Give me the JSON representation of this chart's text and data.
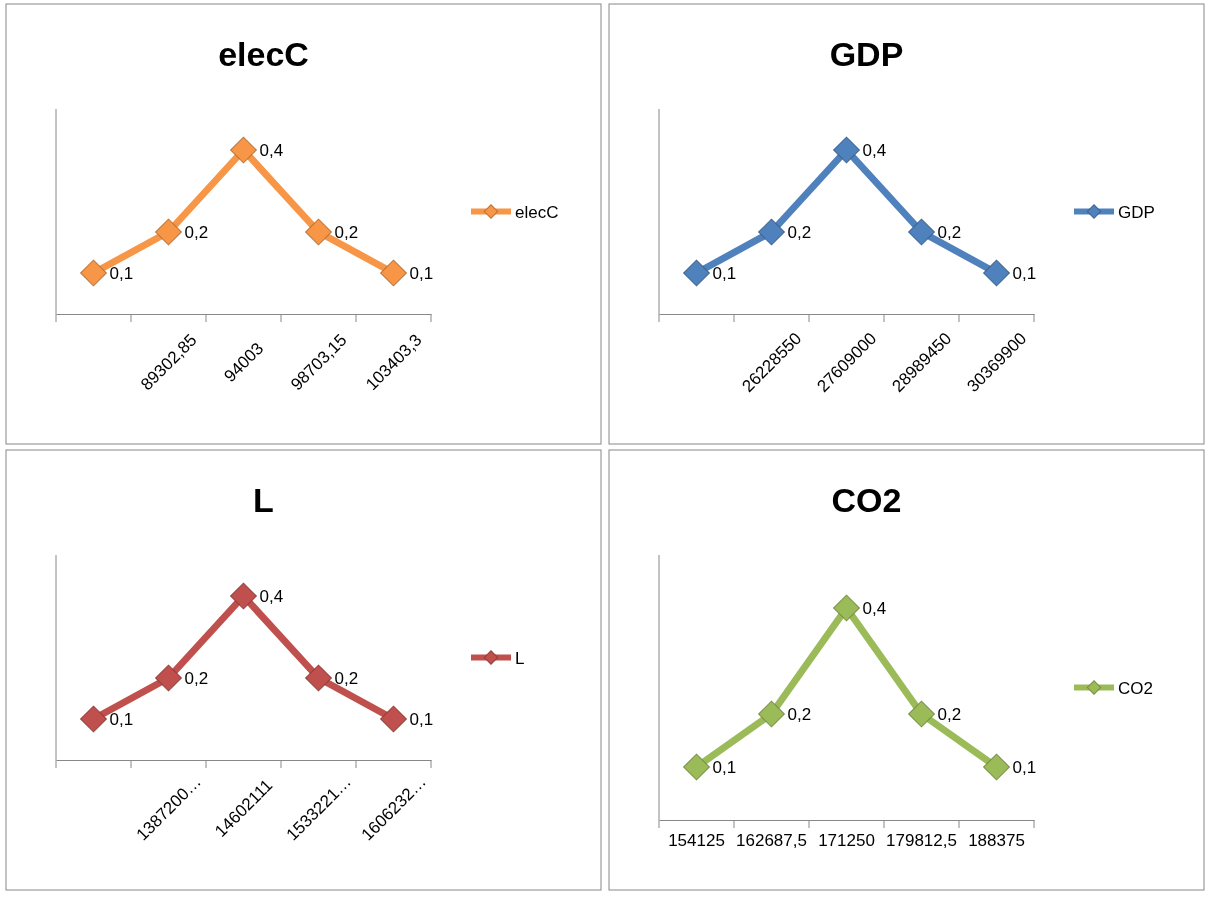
{
  "chart_data": [
    {
      "type": "line",
      "title": "elecC",
      "categories": [
        null,
        "89302,85",
        "94003",
        "98703,15",
        "103403,3"
      ],
      "series": [
        {
          "name": "elecC",
          "color": "#f79646",
          "values": [
            0.1,
            0.2,
            0.4,
            0.2,
            0.1
          ],
          "value_labels": [
            "0,1",
            "0,2",
            "0,4",
            "0,2",
            "0,1"
          ]
        }
      ],
      "legend": "right",
      "marker": "diamond",
      "line_style": "solid"
    },
    {
      "type": "line",
      "title": "GDP",
      "categories": [
        null,
        "26228550",
        "27609000",
        "28989450",
        "30369900"
      ],
      "series": [
        {
          "name": "GDP",
          "color": "#4f81bd",
          "values": [
            0.1,
            0.2,
            0.4,
            0.2,
            0.1
          ],
          "value_labels": [
            "0,1",
            "0,2",
            "0,4",
            "0,2",
            "0,1"
          ]
        }
      ],
      "legend": "right",
      "marker": "diamond",
      "line_style": "solid"
    },
    {
      "type": "line",
      "title": "L",
      "categories": [
        null,
        "1387200…",
        "14602111",
        "1533221…",
        "1606232…"
      ],
      "series": [
        {
          "name": "L",
          "color": "#c0504d",
          "values": [
            0.1,
            0.2,
            0.4,
            0.2,
            0.1
          ],
          "value_labels": [
            "0,1",
            "0,2",
            "0,4",
            "0,2",
            "0,1"
          ]
        }
      ],
      "legend": "right",
      "marker": "diamond",
      "line_style": "solid"
    },
    {
      "type": "line",
      "title": "CO2",
      "categories": [
        "154125",
        "162687,5",
        "171250",
        "179812,5",
        "188375"
      ],
      "series": [
        {
          "name": "CO2",
          "color": "#9bbb59",
          "values": [
            0.1,
            0.2,
            0.4,
            0.2,
            0.1
          ],
          "value_labels": [
            "0,1",
            "0,2",
            "0,4",
            "0,2",
            "0,1"
          ]
        }
      ],
      "legend": "right",
      "marker": "diamond",
      "line_style": "solid"
    }
  ]
}
